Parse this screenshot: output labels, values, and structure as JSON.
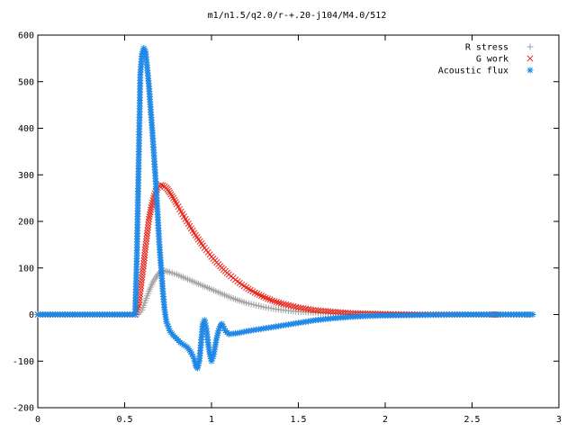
{
  "chart_data": {
    "type": "scatter",
    "title": "m1/n1.5/q2.0/r-+.20-j104/M4.0/512",
    "xlabel": "",
    "ylabel": "",
    "xlim": [
      0,
      3
    ],
    "ylim": [
      -200,
      600
    ],
    "xticks": [
      {
        "value": 0,
        "label": "0"
      },
      {
        "value": 0.5,
        "label": "0.5"
      },
      {
        "value": 1,
        "label": "1"
      },
      {
        "value": 1.5,
        "label": "1.5"
      },
      {
        "value": 2,
        "label": "2"
      },
      {
        "value": 2.5,
        "label": "2.5"
      },
      {
        "value": 3,
        "label": "3"
      }
    ],
    "yticks": [
      {
        "value": -200,
        "label": "-200"
      },
      {
        "value": -100,
        "label": "-100"
      },
      {
        "value": 0,
        "label": "0"
      },
      {
        "value": 100,
        "label": "100"
      },
      {
        "value": 200,
        "label": "200"
      },
      {
        "value": 300,
        "label": "300"
      },
      {
        "value": 400,
        "label": "400"
      },
      {
        "value": 500,
        "label": "500"
      },
      {
        "value": 600,
        "label": "600"
      }
    ],
    "grid": false,
    "legend_position": "top-right",
    "series": [
      {
        "name": "R stress",
        "marker": "plus",
        "color": "#a0a0a0",
        "points": [
          [
            0,
            0
          ],
          [
            0.1,
            0
          ],
          [
            0.2,
            0
          ],
          [
            0.3,
            0
          ],
          [
            0.4,
            0
          ],
          [
            0.5,
            0
          ],
          [
            0.56,
            0
          ],
          [
            0.58,
            1
          ],
          [
            0.6,
            10
          ],
          [
            0.62,
            30
          ],
          [
            0.64,
            50
          ],
          [
            0.66,
            68
          ],
          [
            0.68,
            80
          ],
          [
            0.7,
            90
          ],
          [
            0.72,
            94
          ],
          [
            0.74,
            93
          ],
          [
            0.76,
            91
          ],
          [
            0.8,
            86
          ],
          [
            0.85,
            78
          ],
          [
            0.9,
            70
          ],
          [
            0.95,
            62
          ],
          [
            1.0,
            54
          ],
          [
            1.05,
            46
          ],
          [
            1.1,
            38
          ],
          [
            1.15,
            31
          ],
          [
            1.2,
            25
          ],
          [
            1.3,
            16
          ],
          [
            1.4,
            10
          ],
          [
            1.5,
            6
          ],
          [
            1.6,
            4
          ],
          [
            1.7,
            2
          ],
          [
            1.8,
            1
          ],
          [
            1.9,
            0.5
          ],
          [
            2.0,
            0
          ],
          [
            2.2,
            0
          ],
          [
            2.4,
            0
          ],
          [
            2.6,
            0
          ],
          [
            2.8,
            0
          ],
          [
            2.85,
            0
          ]
        ]
      },
      {
        "name": "G work",
        "marker": "cross",
        "color": "#e8261c",
        "points": [
          [
            0,
            0
          ],
          [
            0.1,
            0
          ],
          [
            0.2,
            0
          ],
          [
            0.3,
            0
          ],
          [
            0.4,
            0
          ],
          [
            0.5,
            0
          ],
          [
            0.56,
            0
          ],
          [
            0.58,
            20
          ],
          [
            0.59,
            50
          ],
          [
            0.6,
            80
          ],
          [
            0.61,
            110
          ],
          [
            0.62,
            145
          ],
          [
            0.63,
            175
          ],
          [
            0.64,
            205
          ],
          [
            0.65,
            225
          ],
          [
            0.66,
            240
          ],
          [
            0.67,
            255
          ],
          [
            0.68,
            265
          ],
          [
            0.69,
            272
          ],
          [
            0.7,
            276
          ],
          [
            0.71,
            278
          ],
          [
            0.72,
            277
          ],
          [
            0.74,
            272
          ],
          [
            0.76,
            262
          ],
          [
            0.78,
            250
          ],
          [
            0.8,
            237
          ],
          [
            0.85,
            205
          ],
          [
            0.9,
            175
          ],
          [
            0.95,
            148
          ],
          [
            1.0,
            124
          ],
          [
            1.05,
            104
          ],
          [
            1.1,
            86
          ],
          [
            1.15,
            71
          ],
          [
            1.2,
            58
          ],
          [
            1.25,
            47
          ],
          [
            1.3,
            38
          ],
          [
            1.35,
            30
          ],
          [
            1.4,
            24
          ],
          [
            1.5,
            15
          ],
          [
            1.6,
            9
          ],
          [
            1.7,
            6
          ],
          [
            1.8,
            3
          ],
          [
            1.9,
            2
          ],
          [
            2.0,
            1
          ],
          [
            2.2,
            0
          ],
          [
            2.4,
            0
          ],
          [
            2.6,
            0
          ],
          [
            2.65,
            0
          ]
        ]
      },
      {
        "name": "Acoustic flux",
        "marker": "star",
        "color": "#1e88e5",
        "points": [
          [
            0,
            0
          ],
          [
            0.1,
            0
          ],
          [
            0.2,
            0
          ],
          [
            0.3,
            0
          ],
          [
            0.4,
            0
          ],
          [
            0.5,
            0
          ],
          [
            0.56,
            0
          ],
          [
            0.57,
            120
          ],
          [
            0.58,
            313
          ],
          [
            0.59,
            515
          ],
          [
            0.6,
            560
          ],
          [
            0.61,
            572
          ],
          [
            0.62,
            565
          ],
          [
            0.63,
            530
          ],
          [
            0.64,
            490
          ],
          [
            0.65,
            440
          ],
          [
            0.66,
            390
          ],
          [
            0.67,
            335
          ],
          [
            0.68,
            280
          ],
          [
            0.69,
            215
          ],
          [
            0.7,
            150
          ],
          [
            0.71,
            100
          ],
          [
            0.72,
            50
          ],
          [
            0.73,
            10
          ],
          [
            0.74,
            -15
          ],
          [
            0.76,
            -35
          ],
          [
            0.78,
            -45
          ],
          [
            0.8,
            -52
          ],
          [
            0.82,
            -60
          ],
          [
            0.84,
            -65
          ],
          [
            0.86,
            -70
          ],
          [
            0.88,
            -80
          ],
          [
            0.9,
            -95
          ],
          [
            0.91,
            -110
          ],
          [
            0.92,
            -115
          ],
          [
            0.93,
            -100
          ],
          [
            0.94,
            -60
          ],
          [
            0.95,
            -20
          ],
          [
            0.96,
            -12
          ],
          [
            0.97,
            -30
          ],
          [
            0.98,
            -60
          ],
          [
            0.99,
            -85
          ],
          [
            1.0,
            -100
          ],
          [
            1.01,
            -90
          ],
          [
            1.02,
            -70
          ],
          [
            1.03,
            -50
          ],
          [
            1.04,
            -35
          ],
          [
            1.05,
            -25
          ],
          [
            1.06,
            -20
          ],
          [
            1.08,
            -35
          ],
          [
            1.1,
            -42
          ],
          [
            1.15,
            -40
          ],
          [
            1.2,
            -36
          ],
          [
            1.3,
            -30
          ],
          [
            1.4,
            -24
          ],
          [
            1.5,
            -18
          ],
          [
            1.6,
            -12
          ],
          [
            1.7,
            -8
          ],
          [
            1.8,
            -5
          ],
          [
            1.9,
            -3
          ],
          [
            2.0,
            -2
          ],
          [
            2.2,
            -1
          ],
          [
            2.4,
            0
          ],
          [
            2.6,
            0
          ],
          [
            2.85,
            0
          ]
        ]
      }
    ]
  }
}
